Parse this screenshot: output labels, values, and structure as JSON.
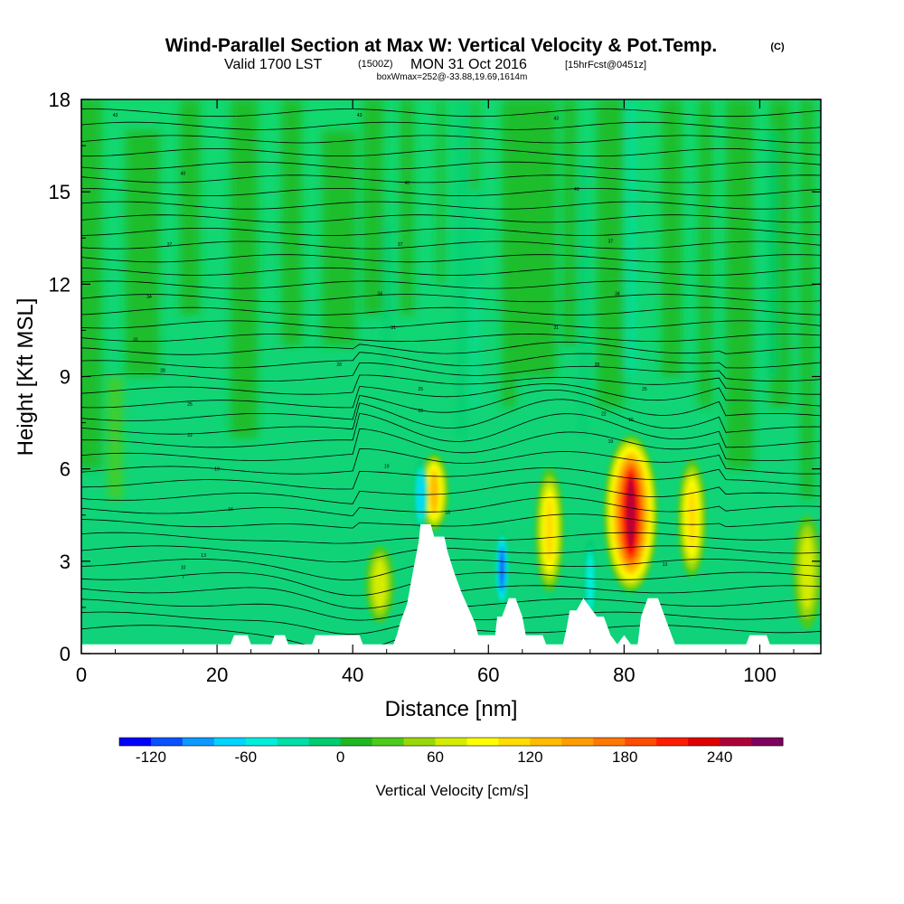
{
  "chart_data": {
    "type": "heatmap",
    "title": "Wind-Parallel Section at Max W: Vertical Velocity & Pot.Temp.",
    "title_units": "(C)",
    "subtitle_main": "Valid 1700 LST",
    "subtitle_utc": "(1500Z)",
    "subtitle_date": "MON 31 Oct 2016",
    "subtitle_fcst": "[15hrFcst@0451z]",
    "boxline": "boxWmax=252@-33.88,19.69,1614m",
    "xlabel": "Distance [nm]",
    "ylabel": "Height [Kft MSL]",
    "xlim": [
      0,
      109
    ],
    "ylim": [
      0,
      18
    ],
    "x_ticks": [
      0,
      20,
      40,
      60,
      80,
      100
    ],
    "y_ticks": [
      0,
      3,
      6,
      9,
      12,
      15,
      18
    ],
    "colorbar": {
      "label": "Vertical Velocity [cm/s]",
      "ticks": [
        -120,
        -60,
        0,
        60,
        120,
        180,
        240
      ],
      "levels": [
        -140,
        -120,
        -100,
        -80,
        -60,
        -40,
        -20,
        0,
        20,
        40,
        60,
        80,
        100,
        120,
        140,
        160,
        180,
        200,
        220,
        240,
        260,
        280
      ],
      "colors": [
        "#0000ff",
        "#0a52ff",
        "#0f99ff",
        "#00d4ff",
        "#00eedc",
        "#00e0a8",
        "#00cc70",
        "#20b820",
        "#4ccb1a",
        "#98d80a",
        "#d4ec00",
        "#ffff00",
        "#ffdd00",
        "#ffbc00",
        "#ff9c00",
        "#ff7800",
        "#ff4d00",
        "#ff1e00",
        "#e00000",
        "#b0003a",
        "#800060"
      ]
    },
    "regions": [
      {
        "name": "ascent core near 81 nm",
        "x": 81,
        "bottom": 2.0,
        "top": 7.1,
        "peak_cm_s": 252
      },
      {
        "name": "ascent near 52 nm",
        "x": 52,
        "bottom": 4.0,
        "top": 6.5,
        "peak_cm_s": 120
      },
      {
        "name": "ascent near 69 nm",
        "x": 69,
        "bottom": 2.0,
        "top": 6.0,
        "peak_cm_s": 110
      },
      {
        "name": "ascent near 90 nm",
        "x": 90,
        "bottom": 2.5,
        "top": 6.3,
        "peak_cm_s": 110
      },
      {
        "name": "ascent near 44 nm",
        "x": 44,
        "bottom": 1.0,
        "top": 3.5,
        "peak_cm_s": 60
      },
      {
        "name": "ascent near 107 nm",
        "x": 107,
        "bottom": 0.8,
        "top": 4.5,
        "peak_cm_s": 60
      },
      {
        "name": "descent near 50 nm",
        "x": 50,
        "bottom": 4.0,
        "top": 6.3,
        "peak_cm_s": -90
      },
      {
        "name": "descent near 62 nm",
        "x": 62,
        "bottom": 1.5,
        "top": 4.0,
        "peak_cm_s": -120
      },
      {
        "name": "descent near 75 nm",
        "x": 75,
        "bottom": 1.0,
        "top": 3.7,
        "peak_cm_s": -60
      }
    ],
    "terrain": [
      [
        0,
        0.3
      ],
      [
        22,
        0.3
      ],
      [
        22.5,
        0.6
      ],
      [
        24.5,
        0.6
      ],
      [
        25,
        0.3
      ],
      [
        28,
        0.3
      ],
      [
        28.5,
        0.6
      ],
      [
        30,
        0.6
      ],
      [
        30.5,
        0.3
      ],
      [
        34,
        0.3
      ],
      [
        34.5,
        0.6
      ],
      [
        41,
        0.6
      ],
      [
        41.5,
        0.3
      ],
      [
        46,
        0.3
      ],
      [
        46.5,
        0.6
      ],
      [
        47,
        1.0
      ],
      [
        48,
        1.6
      ],
      [
        49,
        2.8
      ],
      [
        49.7,
        3.6
      ],
      [
        50,
        4.2
      ],
      [
        51.5,
        4.2
      ],
      [
        52,
        3.8
      ],
      [
        53.5,
        3.8
      ],
      [
        54,
        3.3
      ],
      [
        55,
        2.6
      ],
      [
        56,
        2.0
      ],
      [
        57,
        1.5
      ],
      [
        58,
        1.0
      ],
      [
        58.5,
        0.6
      ],
      [
        61,
        0.6
      ],
      [
        61.3,
        1.2
      ],
      [
        62,
        1.2
      ],
      [
        63,
        1.8
      ],
      [
        64,
        1.8
      ],
      [
        65,
        1.2
      ],
      [
        65.5,
        0.6
      ],
      [
        68,
        0.6
      ],
      [
        68.5,
        0.3
      ],
      [
        71,
        0.3
      ],
      [
        71.5,
        0.8
      ],
      [
        72,
        1.4
      ],
      [
        73,
        1.4
      ],
      [
        74,
        1.8
      ],
      [
        75,
        1.5
      ],
      [
        76,
        1.2
      ],
      [
        77,
        1.2
      ],
      [
        78,
        0.6
      ],
      [
        79,
        0.3
      ],
      [
        80,
        0.6
      ],
      [
        81,
        0.3
      ],
      [
        82,
        0.3
      ],
      [
        82.5,
        1.2
      ],
      [
        83.5,
        1.8
      ],
      [
        85,
        1.8
      ],
      [
        86,
        1.2
      ],
      [
        87,
        0.6
      ],
      [
        87.5,
        0.3
      ],
      [
        98,
        0.3
      ],
      [
        98.5,
        0.6
      ],
      [
        101,
        0.6
      ],
      [
        101.5,
        0.3
      ],
      [
        109,
        0.3
      ]
    ],
    "isentrope_labels": [
      {
        "text": "43",
        "x": 5,
        "y": 17.5
      },
      {
        "text": "43",
        "x": 41,
        "y": 17.5
      },
      {
        "text": "43",
        "x": 70,
        "y": 17.4
      },
      {
        "text": "40",
        "x": 15,
        "y": 15.6
      },
      {
        "text": "40",
        "x": 48,
        "y": 15.3
      },
      {
        "text": "40",
        "x": 73,
        "y": 15.1
      },
      {
        "text": "37",
        "x": 13,
        "y": 13.3
      },
      {
        "text": "37",
        "x": 47,
        "y": 13.3
      },
      {
        "text": "37",
        "x": 78,
        "y": 13.4
      },
      {
        "text": "34",
        "x": 10,
        "y": 11.6
      },
      {
        "text": "34",
        "x": 44,
        "y": 11.7
      },
      {
        "text": "34",
        "x": 79,
        "y": 11.7
      },
      {
        "text": "31",
        "x": 8,
        "y": 10.2
      },
      {
        "text": "31",
        "x": 46,
        "y": 10.6
      },
      {
        "text": "31",
        "x": 70,
        "y": 10.6
      },
      {
        "text": "28",
        "x": 12,
        "y": 9.2
      },
      {
        "text": "28",
        "x": 38,
        "y": 9.4
      },
      {
        "text": "28",
        "x": 76,
        "y": 9.4
      },
      {
        "text": "25",
        "x": 16,
        "y": 8.1
      },
      {
        "text": "25",
        "x": 50,
        "y": 8.6
      },
      {
        "text": "25",
        "x": 83,
        "y": 8.6
      },
      {
        "text": "22",
        "x": 16,
        "y": 7.1
      },
      {
        "text": "22",
        "x": 50,
        "y": 7.9
      },
      {
        "text": "22",
        "x": 77,
        "y": 7.8
      },
      {
        "text": "19",
        "x": 20,
        "y": 6.0
      },
      {
        "text": "19",
        "x": 45,
        "y": 6.1
      },
      {
        "text": "19",
        "x": 78,
        "y": 6.9
      },
      {
        "text": "16",
        "x": 22,
        "y": 4.7
      },
      {
        "text": "16",
        "x": 54,
        "y": 4.6
      },
      {
        "text": "16",
        "x": 81,
        "y": 7.6
      },
      {
        "text": "13",
        "x": 18,
        "y": 3.2
      },
      {
        "text": "13",
        "x": 86,
        "y": 2.9
      },
      {
        "text": "10",
        "x": 15,
        "y": 2.8
      },
      {
        "text": "7",
        "x": 15,
        "y": 2.5
      }
    ]
  }
}
